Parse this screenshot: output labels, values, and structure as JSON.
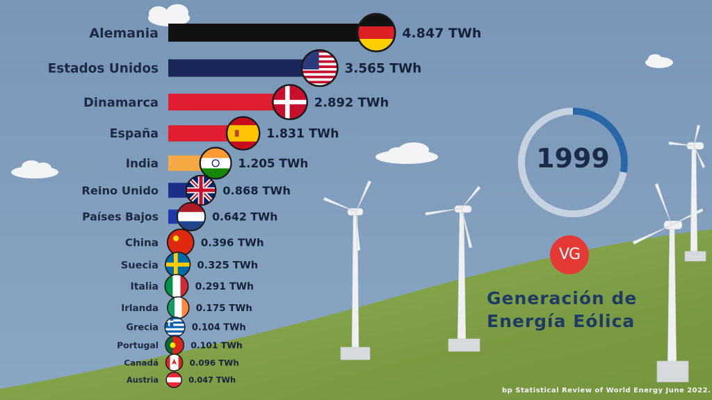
{
  "chart_data": {
    "type": "bar",
    "orientation": "horizontal",
    "categories": [
      "Alemania",
      "Estados Unidos",
      "Dinamarca",
      "España",
      "India",
      "Reino Unido",
      "Países Bajos",
      "China",
      "Suecia",
      "Italia",
      "Irlanda",
      "Grecia",
      "Portugal",
      "Canadá",
      "Austria"
    ],
    "values": [
      4.847,
      3.565,
      2.892,
      1.831,
      1.205,
      0.868,
      0.642,
      0.396,
      0.325,
      0.291,
      0.175,
      0.104,
      0.101,
      0.096,
      0.047
    ],
    "value_labels": [
      "4.847 TWh",
      "3.565 TWh",
      "2.892 TWh",
      "1.831 TWh",
      "1.205 TWh",
      "0.868 TWh",
      "0.642 TWh",
      "0.396 TWh",
      "0.325 TWh",
      "0.291 TWh",
      "0.175 TWh",
      "0.104 TWh",
      "0.101 TWh",
      "0.096 TWh",
      "0.047 TWh"
    ],
    "unit": "TWh",
    "bar_colors": [
      "#111111",
      "#1a2657",
      "#e01e2f",
      "#e01e2f",
      "#f5a945",
      "#1a2f85",
      "#1e3aa8",
      "#e01e2f",
      "#1c62b5",
      "#2d9b4b",
      "#2d9b4b",
      "#1f5fb0",
      "#2d9b4b",
      "#e01e2f",
      "#e01e2f"
    ],
    "flag_icons": [
      "flag-germany",
      "flag-usa",
      "flag-denmark",
      "flag-spain",
      "flag-india",
      "flag-uk",
      "flag-netherlands",
      "flag-china",
      "flag-sweden",
      "flag-italy",
      "flag-ireland",
      "flag-greece",
      "flag-portugal",
      "flag-canada",
      "flag-austria"
    ],
    "xlim": [
      0,
      4.847
    ]
  },
  "year": "1999",
  "year_progress": 0.28,
  "logo_text": "VG",
  "title_line1": "Generación de",
  "title_line2": "Energía Eólica",
  "source": "bp Statistical Review of World Energy June 2022."
}
